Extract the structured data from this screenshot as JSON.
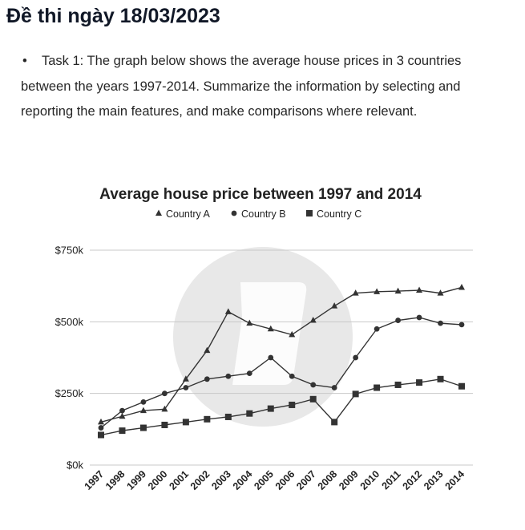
{
  "header": {
    "title": "Đề thi ngày 18/03/2023"
  },
  "task": {
    "text": "Task 1: The graph below shows the average house prices in 3 countries between the years 1997-2014. Summarize the information by selecting and reporting the main features, and make comparisons where relevant."
  },
  "chart_data": {
    "type": "line",
    "title": "Average house price between 1997 and 2014",
    "xlabel": "",
    "ylabel": "",
    "x": [
      "1997",
      "1998",
      "1999",
      "2000",
      "2001",
      "2002",
      "2003",
      "2004",
      "2005",
      "2006",
      "2007",
      "2008",
      "2009",
      "2010",
      "2011",
      "2012",
      "2013",
      "2014"
    ],
    "ylim": [
      0,
      750
    ],
    "yticks": [
      0,
      250,
      500,
      750
    ],
    "ytick_labels": [
      "$0k",
      "$250k",
      "$500k",
      "$750k"
    ],
    "legend": "top",
    "grid": true,
    "series": [
      {
        "name": "Country A",
        "marker": "triangle",
        "values": [
          150,
          170,
          190,
          195,
          300,
          400,
          535,
          495,
          475,
          455,
          505,
          555,
          600,
          605,
          607,
          610,
          600,
          620
        ]
      },
      {
        "name": "Country B",
        "marker": "circle",
        "values": [
          130,
          190,
          220,
          250,
          270,
          300,
          310,
          320,
          375,
          310,
          280,
          270,
          375,
          475,
          505,
          515,
          495,
          490
        ]
      },
      {
        "name": "Country C",
        "marker": "square",
        "values": [
          105,
          120,
          130,
          140,
          150,
          160,
          168,
          180,
          197,
          210,
          230,
          150,
          248,
          270,
          280,
          288,
          300,
          275
        ]
      }
    ],
    "colors": {
      "line": "#333333",
      "grid": "#c8c8c8",
      "watermark": "#e6e6e6"
    }
  }
}
